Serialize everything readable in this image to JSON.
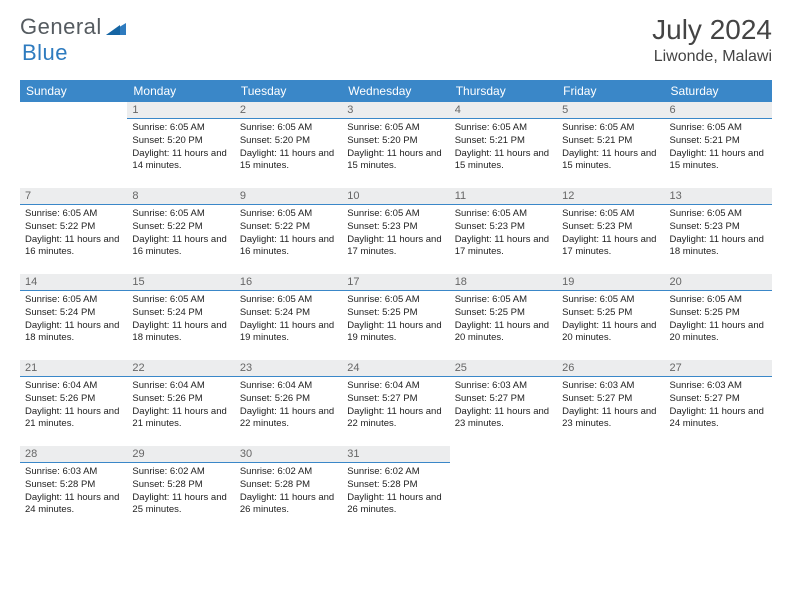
{
  "brand": {
    "part1": "General",
    "part2": "Blue"
  },
  "title": "July 2024",
  "location": "Liwonde, Malawi",
  "colors": {
    "header_bg": "#3a87c8",
    "header_text": "#ffffff",
    "daynum_bg": "#ecedee",
    "daynum_border": "#3a87c8",
    "logo_gray": "#555b60",
    "logo_blue": "#2e7bbf"
  },
  "dayNames": [
    "Sunday",
    "Monday",
    "Tuesday",
    "Wednesday",
    "Thursday",
    "Friday",
    "Saturday"
  ],
  "firstDayOffset": 1,
  "daysInMonth": 31,
  "days": {
    "1": {
      "sunrise": "6:05 AM",
      "sunset": "5:20 PM",
      "daylight": "11 hours and 14 minutes."
    },
    "2": {
      "sunrise": "6:05 AM",
      "sunset": "5:20 PM",
      "daylight": "11 hours and 15 minutes."
    },
    "3": {
      "sunrise": "6:05 AM",
      "sunset": "5:20 PM",
      "daylight": "11 hours and 15 minutes."
    },
    "4": {
      "sunrise": "6:05 AM",
      "sunset": "5:21 PM",
      "daylight": "11 hours and 15 minutes."
    },
    "5": {
      "sunrise": "6:05 AM",
      "sunset": "5:21 PM",
      "daylight": "11 hours and 15 minutes."
    },
    "6": {
      "sunrise": "6:05 AM",
      "sunset": "5:21 PM",
      "daylight": "11 hours and 15 minutes."
    },
    "7": {
      "sunrise": "6:05 AM",
      "sunset": "5:22 PM",
      "daylight": "11 hours and 16 minutes."
    },
    "8": {
      "sunrise": "6:05 AM",
      "sunset": "5:22 PM",
      "daylight": "11 hours and 16 minutes."
    },
    "9": {
      "sunrise": "6:05 AM",
      "sunset": "5:22 PM",
      "daylight": "11 hours and 16 minutes."
    },
    "10": {
      "sunrise": "6:05 AM",
      "sunset": "5:23 PM",
      "daylight": "11 hours and 17 minutes."
    },
    "11": {
      "sunrise": "6:05 AM",
      "sunset": "5:23 PM",
      "daylight": "11 hours and 17 minutes."
    },
    "12": {
      "sunrise": "6:05 AM",
      "sunset": "5:23 PM",
      "daylight": "11 hours and 17 minutes."
    },
    "13": {
      "sunrise": "6:05 AM",
      "sunset": "5:23 PM",
      "daylight": "11 hours and 18 minutes."
    },
    "14": {
      "sunrise": "6:05 AM",
      "sunset": "5:24 PM",
      "daylight": "11 hours and 18 minutes."
    },
    "15": {
      "sunrise": "6:05 AM",
      "sunset": "5:24 PM",
      "daylight": "11 hours and 18 minutes."
    },
    "16": {
      "sunrise": "6:05 AM",
      "sunset": "5:24 PM",
      "daylight": "11 hours and 19 minutes."
    },
    "17": {
      "sunrise": "6:05 AM",
      "sunset": "5:25 PM",
      "daylight": "11 hours and 19 minutes."
    },
    "18": {
      "sunrise": "6:05 AM",
      "sunset": "5:25 PM",
      "daylight": "11 hours and 20 minutes."
    },
    "19": {
      "sunrise": "6:05 AM",
      "sunset": "5:25 PM",
      "daylight": "11 hours and 20 minutes."
    },
    "20": {
      "sunrise": "6:05 AM",
      "sunset": "5:25 PM",
      "daylight": "11 hours and 20 minutes."
    },
    "21": {
      "sunrise": "6:04 AM",
      "sunset": "5:26 PM",
      "daylight": "11 hours and 21 minutes."
    },
    "22": {
      "sunrise": "6:04 AM",
      "sunset": "5:26 PM",
      "daylight": "11 hours and 21 minutes."
    },
    "23": {
      "sunrise": "6:04 AM",
      "sunset": "5:26 PM",
      "daylight": "11 hours and 22 minutes."
    },
    "24": {
      "sunrise": "6:04 AM",
      "sunset": "5:27 PM",
      "daylight": "11 hours and 22 minutes."
    },
    "25": {
      "sunrise": "6:03 AM",
      "sunset": "5:27 PM",
      "daylight": "11 hours and 23 minutes."
    },
    "26": {
      "sunrise": "6:03 AM",
      "sunset": "5:27 PM",
      "daylight": "11 hours and 23 minutes."
    },
    "27": {
      "sunrise": "6:03 AM",
      "sunset": "5:27 PM",
      "daylight": "11 hours and 24 minutes."
    },
    "28": {
      "sunrise": "6:03 AM",
      "sunset": "5:28 PM",
      "daylight": "11 hours and 24 minutes."
    },
    "29": {
      "sunrise": "6:02 AM",
      "sunset": "5:28 PM",
      "daylight": "11 hours and 25 minutes."
    },
    "30": {
      "sunrise": "6:02 AM",
      "sunset": "5:28 PM",
      "daylight": "11 hours and 26 minutes."
    },
    "31": {
      "sunrise": "6:02 AM",
      "sunset": "5:28 PM",
      "daylight": "11 hours and 26 minutes."
    }
  },
  "labels": {
    "sunrise": "Sunrise:",
    "sunset": "Sunset:",
    "daylight": "Daylight:"
  }
}
